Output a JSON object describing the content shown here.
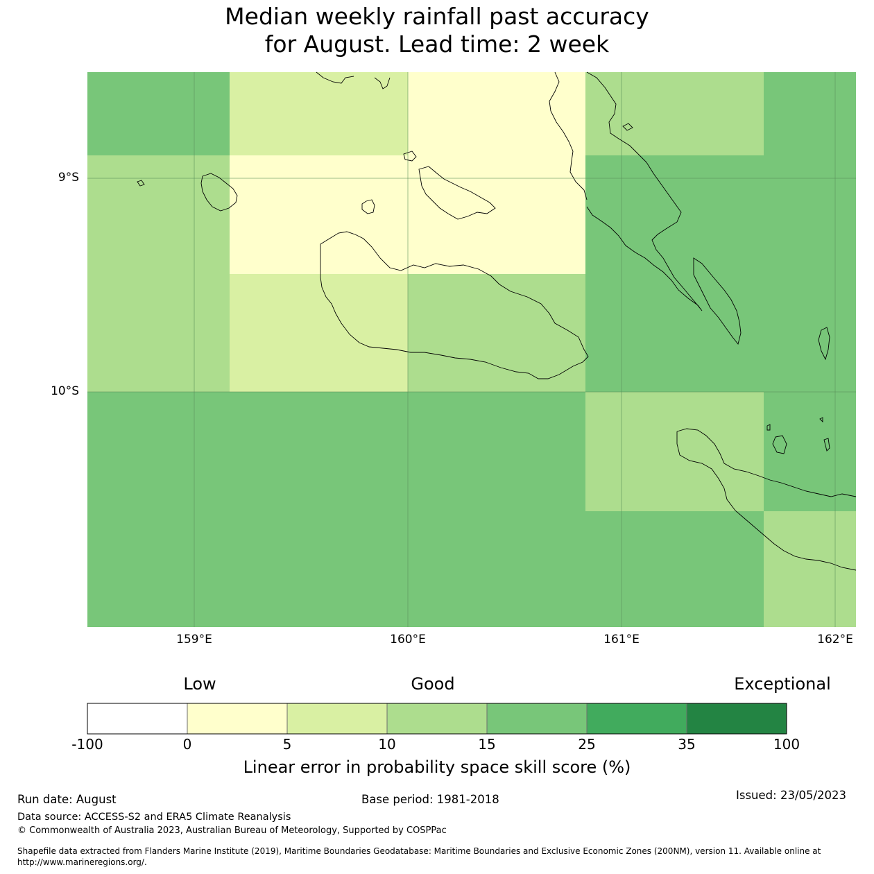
{
  "title": {
    "line1": "Median weekly rainfall past accuracy",
    "line2": "for August. Lead time: 2 week"
  },
  "map": {
    "lat_labels": [
      "9°S",
      "10°S"
    ],
    "lon_labels": [
      "159°E",
      "160°E",
      "161°E",
      "162°E"
    ],
    "cell_skill_categories": [
      [
        "15-25",
        "5-10",
        "0-5",
        "10-15",
        "15-25"
      ],
      [
        "10-15",
        "0-5",
        "0-5",
        "15-25",
        "15-25"
      ],
      [
        "10-15",
        "5-10",
        "10-15",
        "15-25",
        "15-25"
      ],
      [
        "15-25",
        "15-25",
        "15-25",
        "10-15",
        "15-25"
      ],
      [
        "15-25",
        "15-25",
        "15-25",
        "15-25",
        "10-15"
      ]
    ]
  },
  "colorbar": {
    "qualitative_labels": [
      "Low",
      "Good",
      "Exceptional"
    ],
    "ticks": [
      "-100",
      "0",
      "5",
      "10",
      "15",
      "25",
      "35",
      "100"
    ],
    "colors": [
      "#ffffff",
      "#ffffcc",
      "#d9f0a3",
      "#addd8e",
      "#78c679",
      "#41ab5d",
      "#238443"
    ],
    "label": "Linear error in probability space skill score (%)"
  },
  "footer": {
    "run_date": "Run date: August",
    "base_period": "Base period: 1981-2018",
    "issued": "Issued: 23/05/2023",
    "data_source": "Data source: ACCESS-S2 and ERA5 Climate Reanalysis",
    "copyright": "© Commonwealth of Australia 2023, Australian Bureau of Meteorology, Supported by COSPPac",
    "shapefile_line1": "Shapefile data extracted from Flanders Marine Institute (2019), Maritime Boundaries Geodatabase: Maritime Boundaries and Exclusive Economic Zones (200NM), version 11. Available online at",
    "shapefile_line2": "http://www.marineregions.org/."
  }
}
